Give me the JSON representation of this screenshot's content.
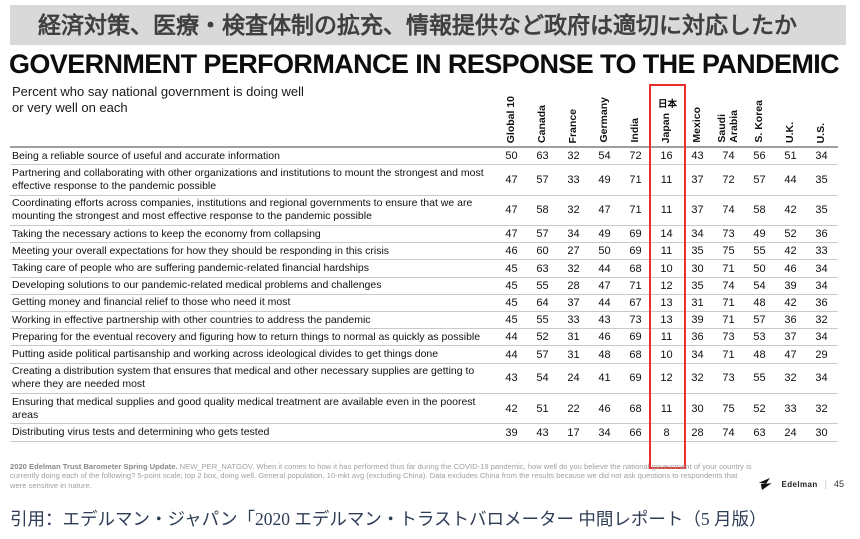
{
  "banner": {
    "text": "経済対策、医療・検査体制の拡充、情報提供など政府は適切に対応したか"
  },
  "header": {
    "title": "GOVERNMENT PERFORMANCE IN RESPONSE TO THE PANDEMIC",
    "subtitle_line1": "Percent who say national government is doing well",
    "subtitle_line2": "or very well on each"
  },
  "japan_highlight": {
    "label": "日本",
    "box_color": "#e8312a"
  },
  "chart_data": {
    "type": "table",
    "title": "Government performance in response to the pandemic (% doing well or very well)",
    "columns": [
      {
        "label": "Global 10",
        "lines": [
          "Global 10"
        ]
      },
      {
        "label": "Canada",
        "lines": [
          "Canada"
        ]
      },
      {
        "label": "France",
        "lines": [
          "France"
        ]
      },
      {
        "label": "Germany",
        "lines": [
          "Germany"
        ]
      },
      {
        "label": "India",
        "lines": [
          "India"
        ]
      },
      {
        "label": "Japan",
        "lines": [
          "Japan"
        ],
        "highlighted": true
      },
      {
        "label": "Mexico",
        "lines": [
          "Mexico"
        ]
      },
      {
        "label": "Saudi Arabia",
        "lines": [
          "Saudi",
          "Arabia"
        ]
      },
      {
        "label": "S. Korea",
        "lines": [
          "S. Korea"
        ]
      },
      {
        "label": "U.K.",
        "lines": [
          "U.K."
        ]
      },
      {
        "label": "U.S.",
        "lines": [
          "U.S."
        ]
      }
    ],
    "rows": [
      {
        "statement": "Being a reliable source of useful and accurate information",
        "values": [
          50,
          63,
          32,
          54,
          72,
          16,
          43,
          74,
          56,
          51,
          34
        ]
      },
      {
        "statement": "Partnering and collaborating with other organizations and institutions to mount the strongest and most effective response to the pandemic possible",
        "values": [
          47,
          57,
          33,
          49,
          71,
          11,
          37,
          72,
          57,
          44,
          35
        ]
      },
      {
        "statement": "Coordinating efforts across companies, institutions and regional governments to ensure that we are mounting the strongest and most effective response to the pandemic possible",
        "values": [
          47,
          58,
          32,
          47,
          71,
          11,
          37,
          74,
          58,
          42,
          35
        ]
      },
      {
        "statement": "Taking the necessary actions to keep the economy from collapsing",
        "values": [
          47,
          57,
          34,
          49,
          69,
          14,
          34,
          73,
          49,
          52,
          36
        ]
      },
      {
        "statement": "Meeting your overall expectations for how they should be responding in this crisis",
        "values": [
          46,
          60,
          27,
          50,
          69,
          11,
          35,
          75,
          55,
          42,
          33
        ]
      },
      {
        "statement": "Taking care of people who are suffering pandemic-related financial hardships",
        "values": [
          45,
          63,
          32,
          44,
          68,
          10,
          30,
          71,
          50,
          46,
          34
        ]
      },
      {
        "statement": "Developing solutions to our pandemic-related medical problems and challenges",
        "values": [
          45,
          55,
          28,
          47,
          71,
          12,
          35,
          74,
          54,
          39,
          34
        ]
      },
      {
        "statement": "Getting money and financial relief to those who need it most",
        "values": [
          45,
          64,
          37,
          44,
          67,
          13,
          31,
          71,
          48,
          42,
          36
        ]
      },
      {
        "statement": "Working in effective partnership with other countries to address the pandemic",
        "values": [
          45,
          55,
          33,
          43,
          73,
          13,
          39,
          71,
          57,
          36,
          32
        ]
      },
      {
        "statement": "Preparing for the eventual recovery and figuring how to return things to normal as quickly as possible",
        "values": [
          44,
          52,
          31,
          46,
          69,
          11,
          36,
          73,
          53,
          37,
          34
        ]
      },
      {
        "statement": "Putting aside political partisanship and working across ideological divides to get things done",
        "values": [
          44,
          57,
          31,
          48,
          68,
          10,
          34,
          71,
          48,
          47,
          29
        ]
      },
      {
        "statement": "Creating a distribution system that ensures that medical and other necessary supplies are getting to where they are needed most",
        "values": [
          43,
          54,
          24,
          41,
          69,
          12,
          32,
          73,
          55,
          32,
          34
        ]
      },
      {
        "statement": "Ensuring that medical supplies and good quality medical treatment are available even in the poorest areas",
        "values": [
          42,
          51,
          22,
          46,
          68,
          11,
          30,
          75,
          52,
          33,
          32
        ]
      },
      {
        "statement": "Distributing virus tests and determining who gets tested",
        "values": [
          39,
          43,
          17,
          34,
          66,
          8,
          28,
          74,
          63,
          24,
          30
        ]
      }
    ]
  },
  "footnote": {
    "bold": "2020 Edelman Trust Barometer Spring Update.",
    "text": " NEW_PER_NATGOV. When it comes to how it has performed thus far during the COVID-19 pandemic, how well do you believe the national government of your country is currently doing each of the following? 5-point scale; top 2 box, doing well. General population, 10-mkt avg (excluding China). Data excludes China from the results because we did not ask questions to respondents that were sensitive in nature."
  },
  "footer": {
    "brand": "Edelman",
    "separator": "|",
    "page": "45"
  },
  "citation": {
    "text": "引用：エデルマン・ジャパン「2020 エデルマン・トラストバロメーター 中間レポート（5 月版）"
  }
}
